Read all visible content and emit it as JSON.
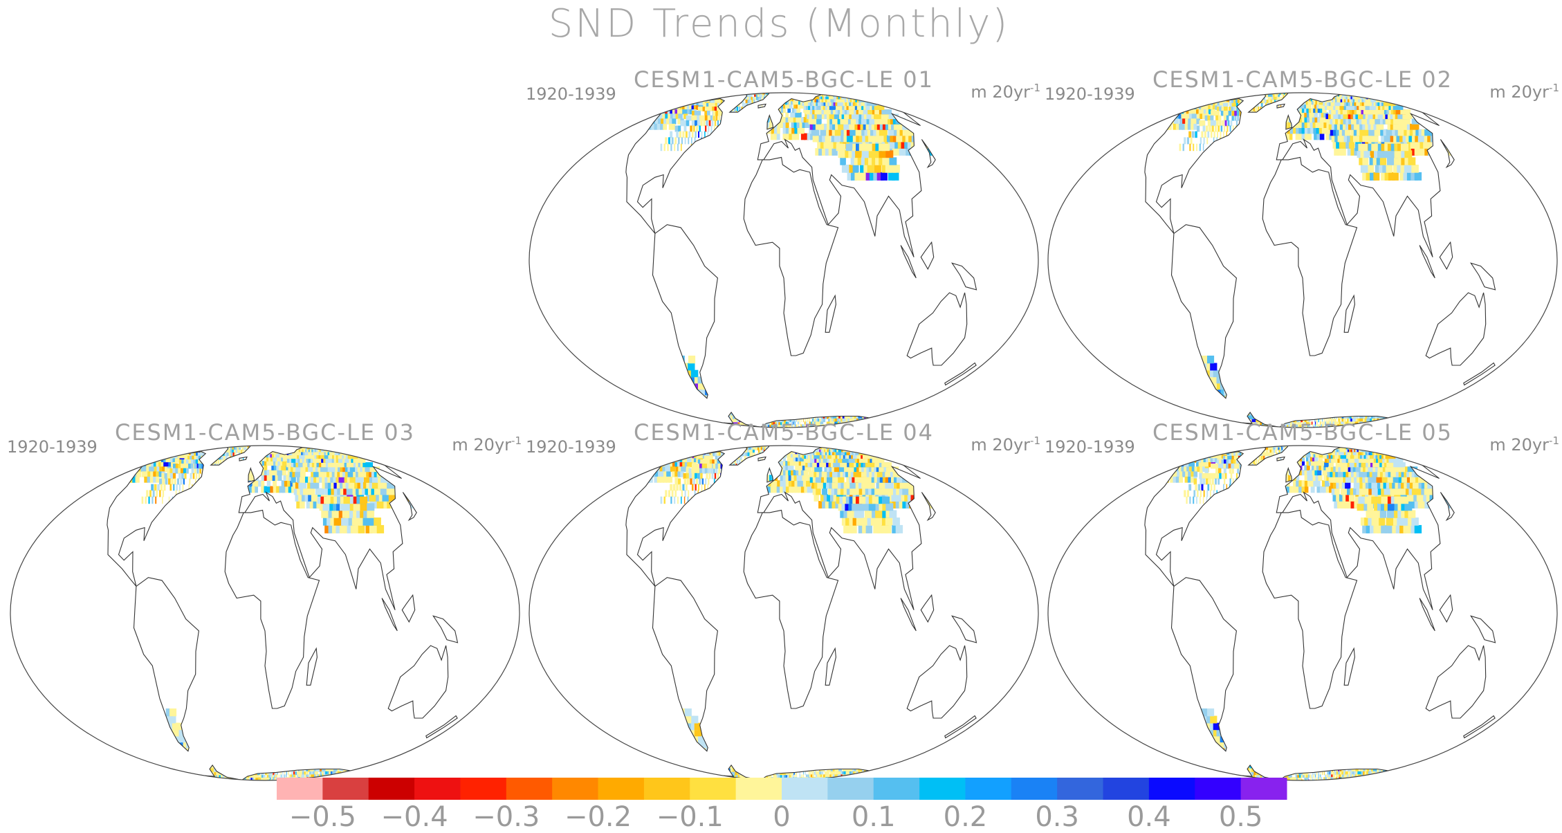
{
  "title": "SND Trends (Monthly)",
  "panels": [
    {
      "name": "CESM1-CAM5-BGC-LE 01",
      "period": "1920-1939",
      "units": "m 20yr",
      "units_exp": "-1"
    },
    {
      "name": "CESM1-CAM5-BGC-LE 02",
      "period": "1920-1939",
      "units": "m 20yr",
      "units_exp": "-1"
    },
    {
      "name": "CESM1-CAM5-BGC-LE 03",
      "period": "1920-1939",
      "units": "m 20yr",
      "units_exp": "-1"
    },
    {
      "name": "CESM1-CAM5-BGC-LE 04",
      "period": "1920-1939",
      "units": "m 20yr",
      "units_exp": "-1"
    },
    {
      "name": "CESM1-CAM5-BGC-LE 05",
      "period": "1920-1939",
      "units": "m 20yr",
      "units_exp": "-1"
    }
  ],
  "colorbar": {
    "colors": [
      "#ffb3b3",
      "#d94040",
      "#cc0000",
      "#ee1111",
      "#ff2200",
      "#ff5a00",
      "#ff8800",
      "#ffaa00",
      "#ffc61a",
      "#ffe040",
      "#fff59a",
      "#bfe3f4",
      "#96d0ee",
      "#55bff0",
      "#00bff5",
      "#12a0ff",
      "#1a82f5",
      "#3366dd",
      "#2244e0",
      "#0a0aff",
      "#3300ff",
      "#8822ee"
    ],
    "labels": [
      "−0.5",
      "−0.4",
      "−0.3",
      "−0.2",
      "−0.1",
      "0",
      "0.1",
      "0.2",
      "0.3",
      "0.4",
      "0.5"
    ]
  }
}
